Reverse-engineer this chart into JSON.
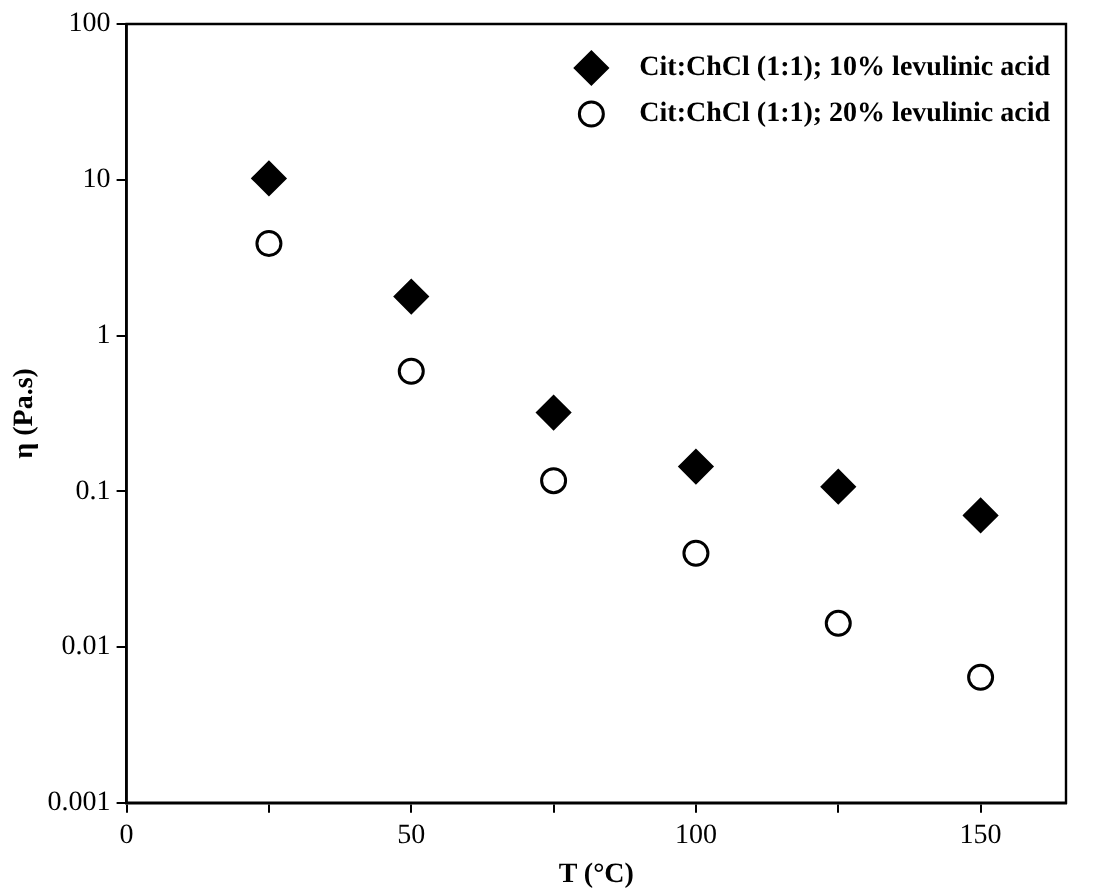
{
  "chart_data": {
    "type": "scatter",
    "xlabel": "T (°C)",
    "ylabel": "η (Pa.s)",
    "log": "y",
    "grid": false,
    "legend": "top right",
    "x": [
      25,
      50,
      75,
      100,
      125,
      150
    ],
    "xlim": [
      0,
      165
    ],
    "xticks": [
      0,
      {
        "value": 25,
        "label": null
      },
      50,
      {
        "value": 75,
        "label": null
      },
      100,
      {
        "value": 125,
        "label": null
      },
      150
    ],
    "ylim": [
      0.001,
      100
    ],
    "yticks": [
      0.001,
      0.01,
      0.1,
      1,
      10,
      100
    ],
    "series": [
      {
        "name": "Cit:ChCl (1:1); 10% levulinic acid",
        "color": "#000000",
        "marker": "diamond",
        "values": [
          10.2,
          1.78,
          0.32,
          0.144,
          0.107,
          0.07
        ]
      },
      {
        "name": "Cit:ChCl (1:1); 20% levulinic acid",
        "color": "#000000",
        "marker": "circle",
        "values": [
          3.9,
          0.59,
          0.117,
          0.04,
          0.0142,
          0.0064
        ]
      }
    ]
  }
}
